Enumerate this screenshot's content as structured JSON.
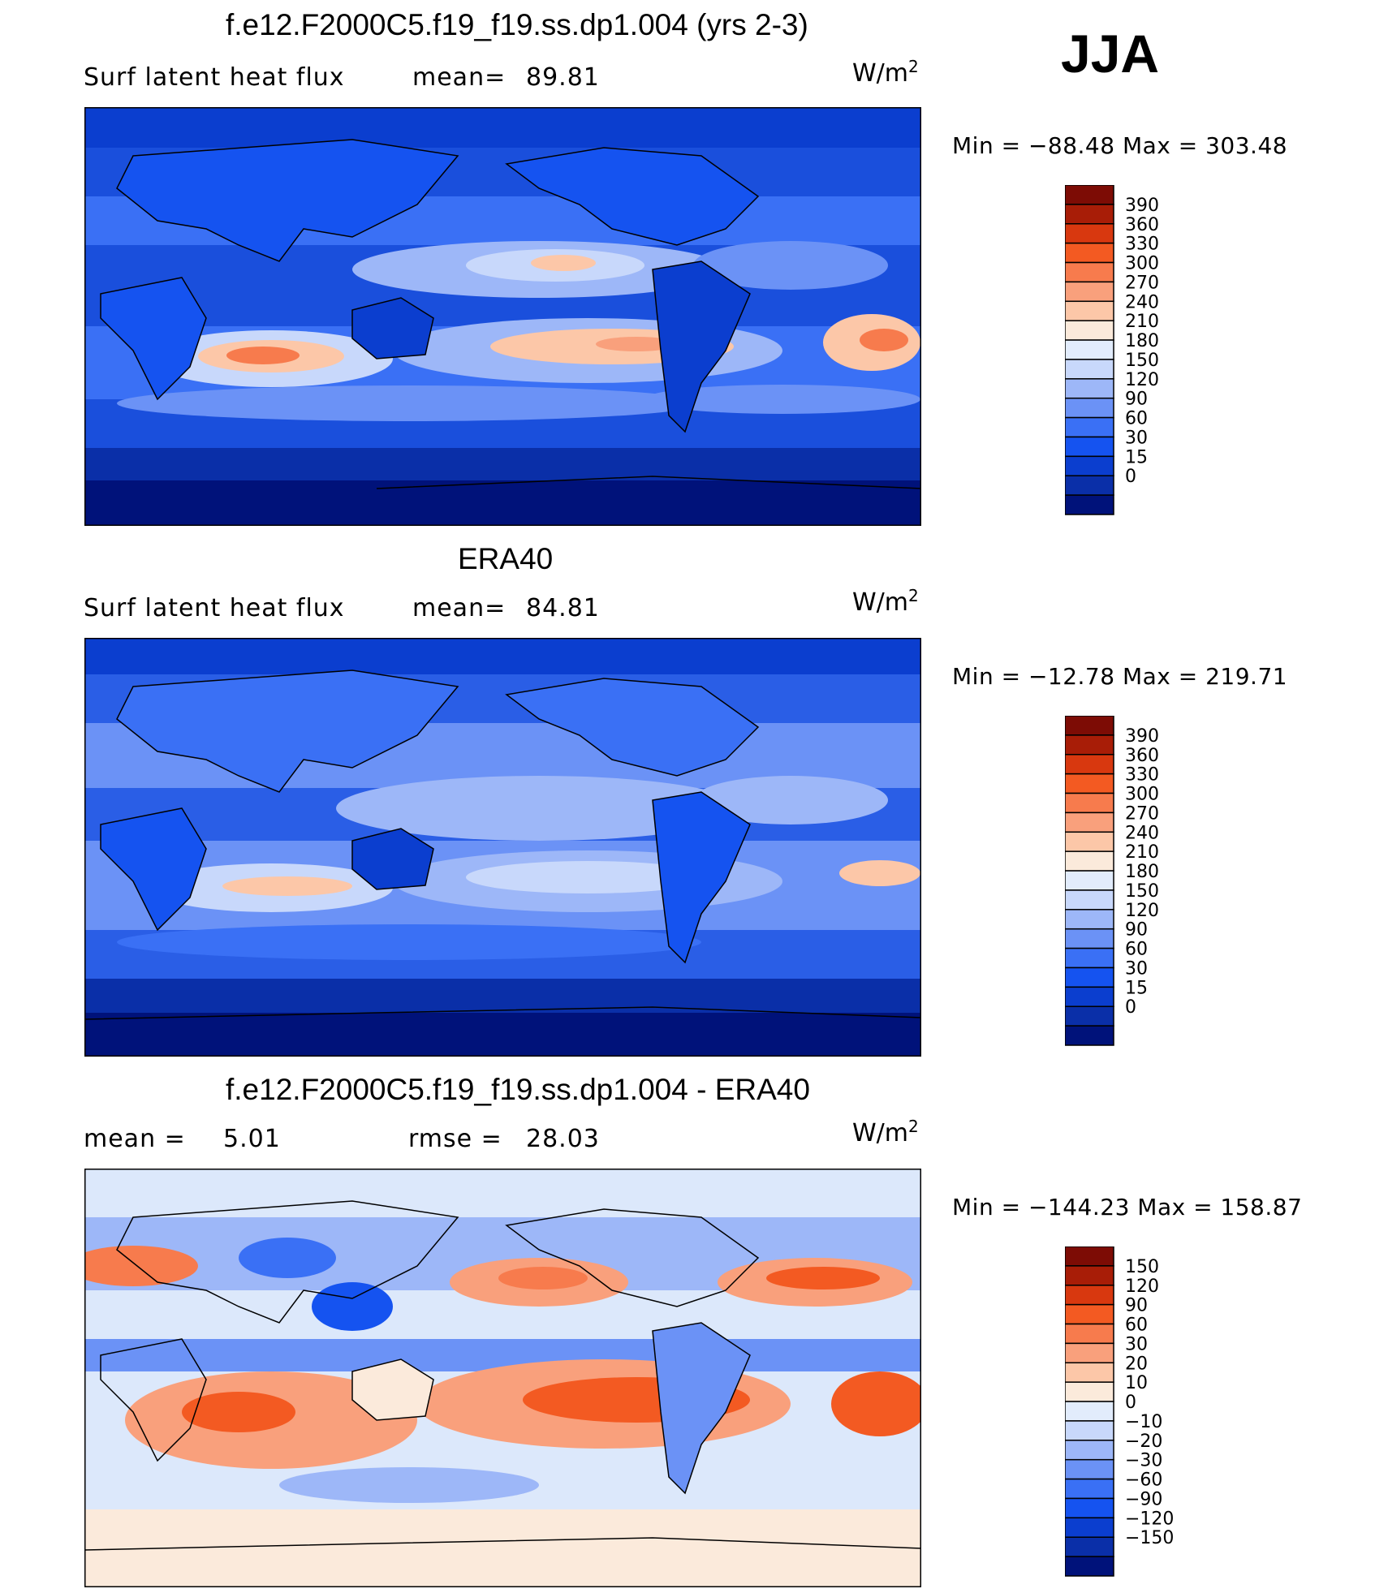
{
  "season": "JJA",
  "panels": [
    {
      "title": "f.e12.F2000C5.f19_f19.ss.dp1.004 (yrs 2-3)",
      "left_label": "Surf latent heat flux",
      "mean_label": "mean=",
      "mean_value": "89.81",
      "units": "W/m",
      "units_sup": "2",
      "minmax": "Min = −88.48 Max = 303.48",
      "palette": [
        "#00127a",
        "#0a2fa8",
        "#0b3ecf",
        "#1553f0",
        "#3a70f5",
        "#6b92f6",
        "#9db7f8",
        "#c8d8fb",
        "#e2ecfc",
        "#fbeadb",
        "#fcc7a8",
        "#f9a07c",
        "#f77b4d",
        "#f35a22",
        "#d8380f",
        "#a81d07",
        "#7d0c05"
      ],
      "levels": [
        "0",
        "15",
        "30",
        "60",
        "90",
        "120",
        "150",
        "180",
        "210",
        "240",
        "270",
        "300",
        "330",
        "360",
        "390"
      ],
      "bg": "#1a4fdc"
    },
    {
      "title": "ERA40",
      "left_label": "Surf latent heat flux",
      "mean_label": "mean=",
      "mean_value": "84.81",
      "units": "W/m",
      "units_sup": "2",
      "minmax": "Min = −12.78 Max = 219.71",
      "palette": [
        "#00127a",
        "#0a2fa8",
        "#0b3ecf",
        "#1553f0",
        "#3a70f5",
        "#6b92f6",
        "#9db7f8",
        "#c8d8fb",
        "#e2ecfc",
        "#fbeadb",
        "#fcc7a8",
        "#f9a07c",
        "#f77b4d",
        "#f35a22",
        "#d8380f",
        "#a81d07",
        "#7d0c05"
      ],
      "levels": [
        "0",
        "15",
        "30",
        "60",
        "90",
        "120",
        "150",
        "180",
        "210",
        "240",
        "270",
        "300",
        "330",
        "360",
        "390"
      ],
      "bg": "#2a5ee6"
    },
    {
      "title": "f.e12.F2000C5.f19_f19.ss.dp1.004 - ERA40",
      "left_label": "mean =",
      "mean_label": "",
      "mean_value": "5.01",
      "rmse_label": "rmse =",
      "rmse_value": "28.03",
      "units": "W/m",
      "units_sup": "2",
      "minmax": "Min = −144.23 Max = 158.87",
      "palette": [
        "#00127a",
        "#0a2fa8",
        "#0b3ecf",
        "#1553f0",
        "#3a70f5",
        "#6b92f6",
        "#9db7f8",
        "#c8d8fb",
        "#e2ecfc",
        "#fbeadb",
        "#fcc7a8",
        "#f9a07c",
        "#f77b4d",
        "#f35a22",
        "#d8380f",
        "#a81d07",
        "#7d0c05"
      ],
      "levels": [
        "−150",
        "−120",
        "−90",
        "−60",
        "−30",
        "−20",
        "−10",
        "0",
        "10",
        "20",
        "30",
        "60",
        "90",
        "120",
        "150"
      ],
      "bg": "#dce8fb"
    }
  ],
  "chart_data": [
    {
      "type": "heatmap",
      "title": "f.e12.F2000C5.f19_f19.ss.dp1.004 (yrs 2-3)",
      "variable": "Surf latent heat flux",
      "mean": 89.81,
      "min": -88.48,
      "max": 303.48,
      "units": "W/m2",
      "contour_levels": [
        0,
        15,
        30,
        60,
        90,
        120,
        150,
        180,
        210,
        240,
        270,
        300,
        330,
        360,
        390
      ]
    },
    {
      "type": "heatmap",
      "title": "ERA40",
      "variable": "Surf latent heat flux",
      "mean": 84.81,
      "min": -12.78,
      "max": 219.71,
      "units": "W/m2",
      "contour_levels": [
        0,
        15,
        30,
        60,
        90,
        120,
        150,
        180,
        210,
        240,
        270,
        300,
        330,
        360,
        390
      ]
    },
    {
      "type": "heatmap",
      "title": "f.e12.F2000C5.f19_f19.ss.dp1.004 - ERA40",
      "mean": 5.01,
      "rmse": 28.03,
      "min": -144.23,
      "max": 158.87,
      "units": "W/m2",
      "contour_levels": [
        -150,
        -120,
        -90,
        -60,
        -30,
        -20,
        -10,
        0,
        10,
        20,
        30,
        60,
        90,
        120,
        150
      ]
    }
  ]
}
